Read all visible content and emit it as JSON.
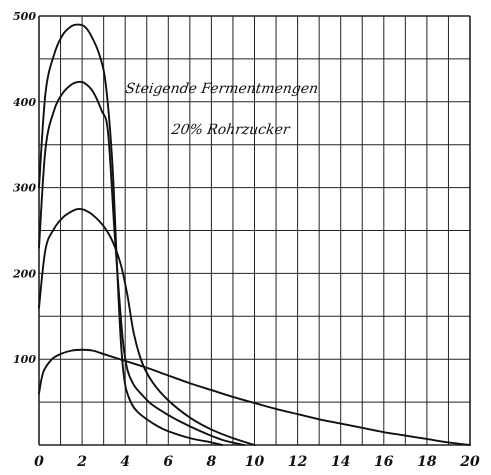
{
  "chart_data": {
    "type": "line",
    "title": "",
    "xlabel": "",
    "ylabel": "",
    "xlim": [
      0,
      20
    ],
    "ylim": [
      0,
      500
    ],
    "grid": true,
    "x_ticks": [
      "0",
      "2",
      "4",
      "6",
      "8",
      "10",
      "12",
      "14",
      "16",
      "18",
      "20"
    ],
    "y_ticks": [
      "100",
      "200",
      "300",
      "400",
      "500"
    ],
    "annotations": [
      "Steigende Fermentmengen",
      "20% Rohrzucker"
    ],
    "colors": {
      "line": "#111111",
      "grid": "#222222",
      "background": "#ffffff"
    },
    "series": [
      {
        "x": [
          0,
          0.3,
          0.7,
          1.1,
          1.5,
          1.8,
          2.1,
          2.4,
          2.8,
          3.1,
          3.4,
          3.6,
          3.8,
          4.0,
          4.3,
          4.6,
          5.0,
          5.5,
          6.0,
          7.0,
          8.0,
          8.5
        ],
        "values": [
          300,
          410,
          455,
          478,
          488,
          490,
          488,
          478,
          455,
          420,
          330,
          220,
          120,
          70,
          48,
          38,
          30,
          22,
          16,
          8,
          3,
          0
        ]
      },
      {
        "x": [
          0,
          0.3,
          0.7,
          1.1,
          1.5,
          1.8,
          2.1,
          2.5,
          2.9,
          3.2,
          3.5,
          3.7,
          3.9,
          4.1,
          4.4,
          4.8,
          5.2,
          5.8,
          6.5,
          7.5,
          8.5,
          9.5
        ],
        "values": [
          230,
          345,
          390,
          410,
          420,
          423,
          422,
          412,
          390,
          365,
          250,
          180,
          120,
          88,
          70,
          58,
          48,
          38,
          28,
          16,
          6,
          0
        ]
      },
      {
        "x": [
          0,
          0.3,
          0.7,
          1.1,
          1.5,
          1.8,
          2.1,
          2.5,
          3.0,
          3.4,
          3.8,
          4.1,
          4.4,
          4.8,
          5.3,
          6.0,
          7.0,
          8.0,
          9.0,
          10.0
        ],
        "values": [
          160,
          228,
          252,
          265,
          272,
          275,
          274,
          268,
          255,
          238,
          210,
          175,
          130,
          95,
          72,
          52,
          32,
          18,
          8,
          0
        ]
      },
      {
        "x": [
          0,
          0.2,
          0.6,
          1.0,
          1.5,
          2.0,
          2.5,
          3.0,
          4.0,
          5.0,
          6.0,
          7.0,
          8.0,
          9.0,
          10.0,
          11.0,
          12.0,
          13.0,
          14.0,
          15.0,
          16.0,
          17.0,
          18.0,
          19.0,
          20.0
        ],
        "values": [
          60,
          85,
          100,
          106,
          110,
          111,
          110,
          106,
          98,
          90,
          81,
          72,
          64,
          56,
          49,
          42,
          36,
          30,
          25,
          20,
          15,
          11,
          7,
          3,
          0
        ]
      }
    ]
  }
}
